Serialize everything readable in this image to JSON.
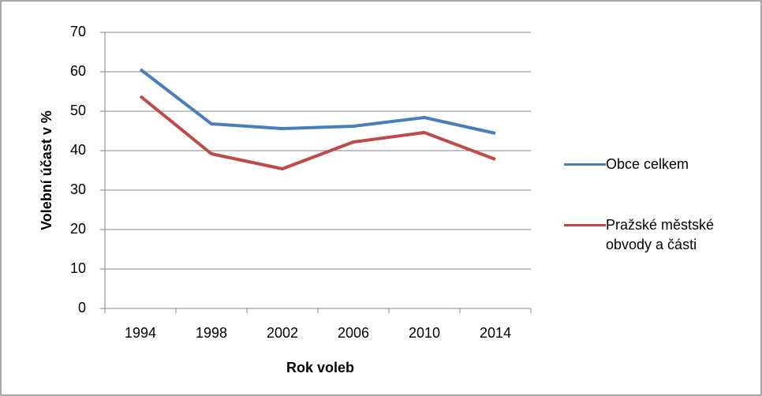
{
  "chart_data": {
    "type": "line",
    "xlabel": "Rok voleb",
    "ylabel": "Volební účast v %",
    "categories": [
      "1994",
      "1998",
      "2002",
      "2006",
      "2010",
      "2014"
    ],
    "series": [
      {
        "name": "Obce celkem",
        "color": "#4a7ebb",
        "values": [
          60.6,
          46.8,
          45.6,
          46.2,
          48.4,
          44.4
        ]
      },
      {
        "name": "Pražské městské obvody a části",
        "color": "#be4b48",
        "values": [
          53.8,
          39.2,
          35.4,
          42.2,
          44.6,
          37.8
        ]
      }
    ],
    "ylim": [
      0,
      70
    ],
    "yticks": [
      0,
      10,
      20,
      30,
      40,
      50,
      60,
      70
    ],
    "grid": true,
    "legend": "right"
  }
}
